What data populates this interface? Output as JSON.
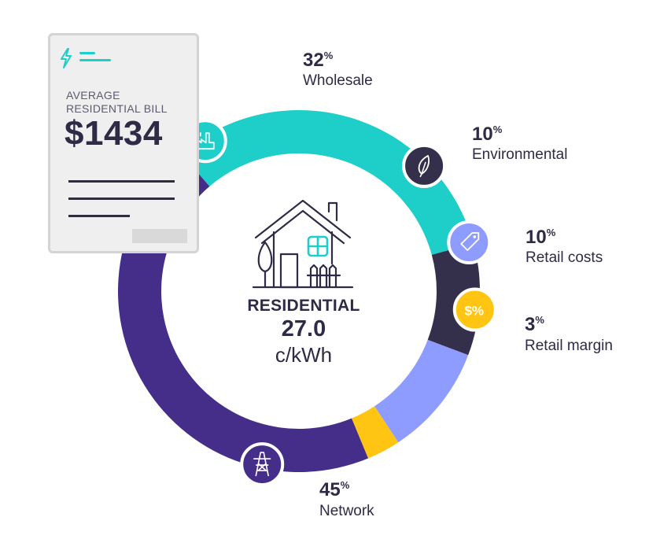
{
  "bill_card": {
    "label_line1": "AVERAGE",
    "label_line2": "RESIDENTIAL BILL",
    "amount": "$1434"
  },
  "center": {
    "title": "RESIDENTIAL",
    "value": "27.0",
    "unit": "c/kWh"
  },
  "chart_data": {
    "type": "pie",
    "title": "",
    "slices": [
      {
        "label": "Wholesale",
        "value": 32,
        "color": "#1ecfc9",
        "icon": "power-plant-icon"
      },
      {
        "label": "Environmental",
        "value": 10,
        "color": "#342f4a",
        "icon": "leaf-icon"
      },
      {
        "label": "Retail costs",
        "value": 10,
        "color": "#8e9cff",
        "icon": "price-tag-icon"
      },
      {
        "label": "Retail margin",
        "value": 3,
        "color": "#ffc512",
        "icon": "dollar-percent-icon"
      },
      {
        "label": "Network",
        "value": 45,
        "color": "#452d8a",
        "icon": "transmission-tower-icon"
      }
    ]
  }
}
